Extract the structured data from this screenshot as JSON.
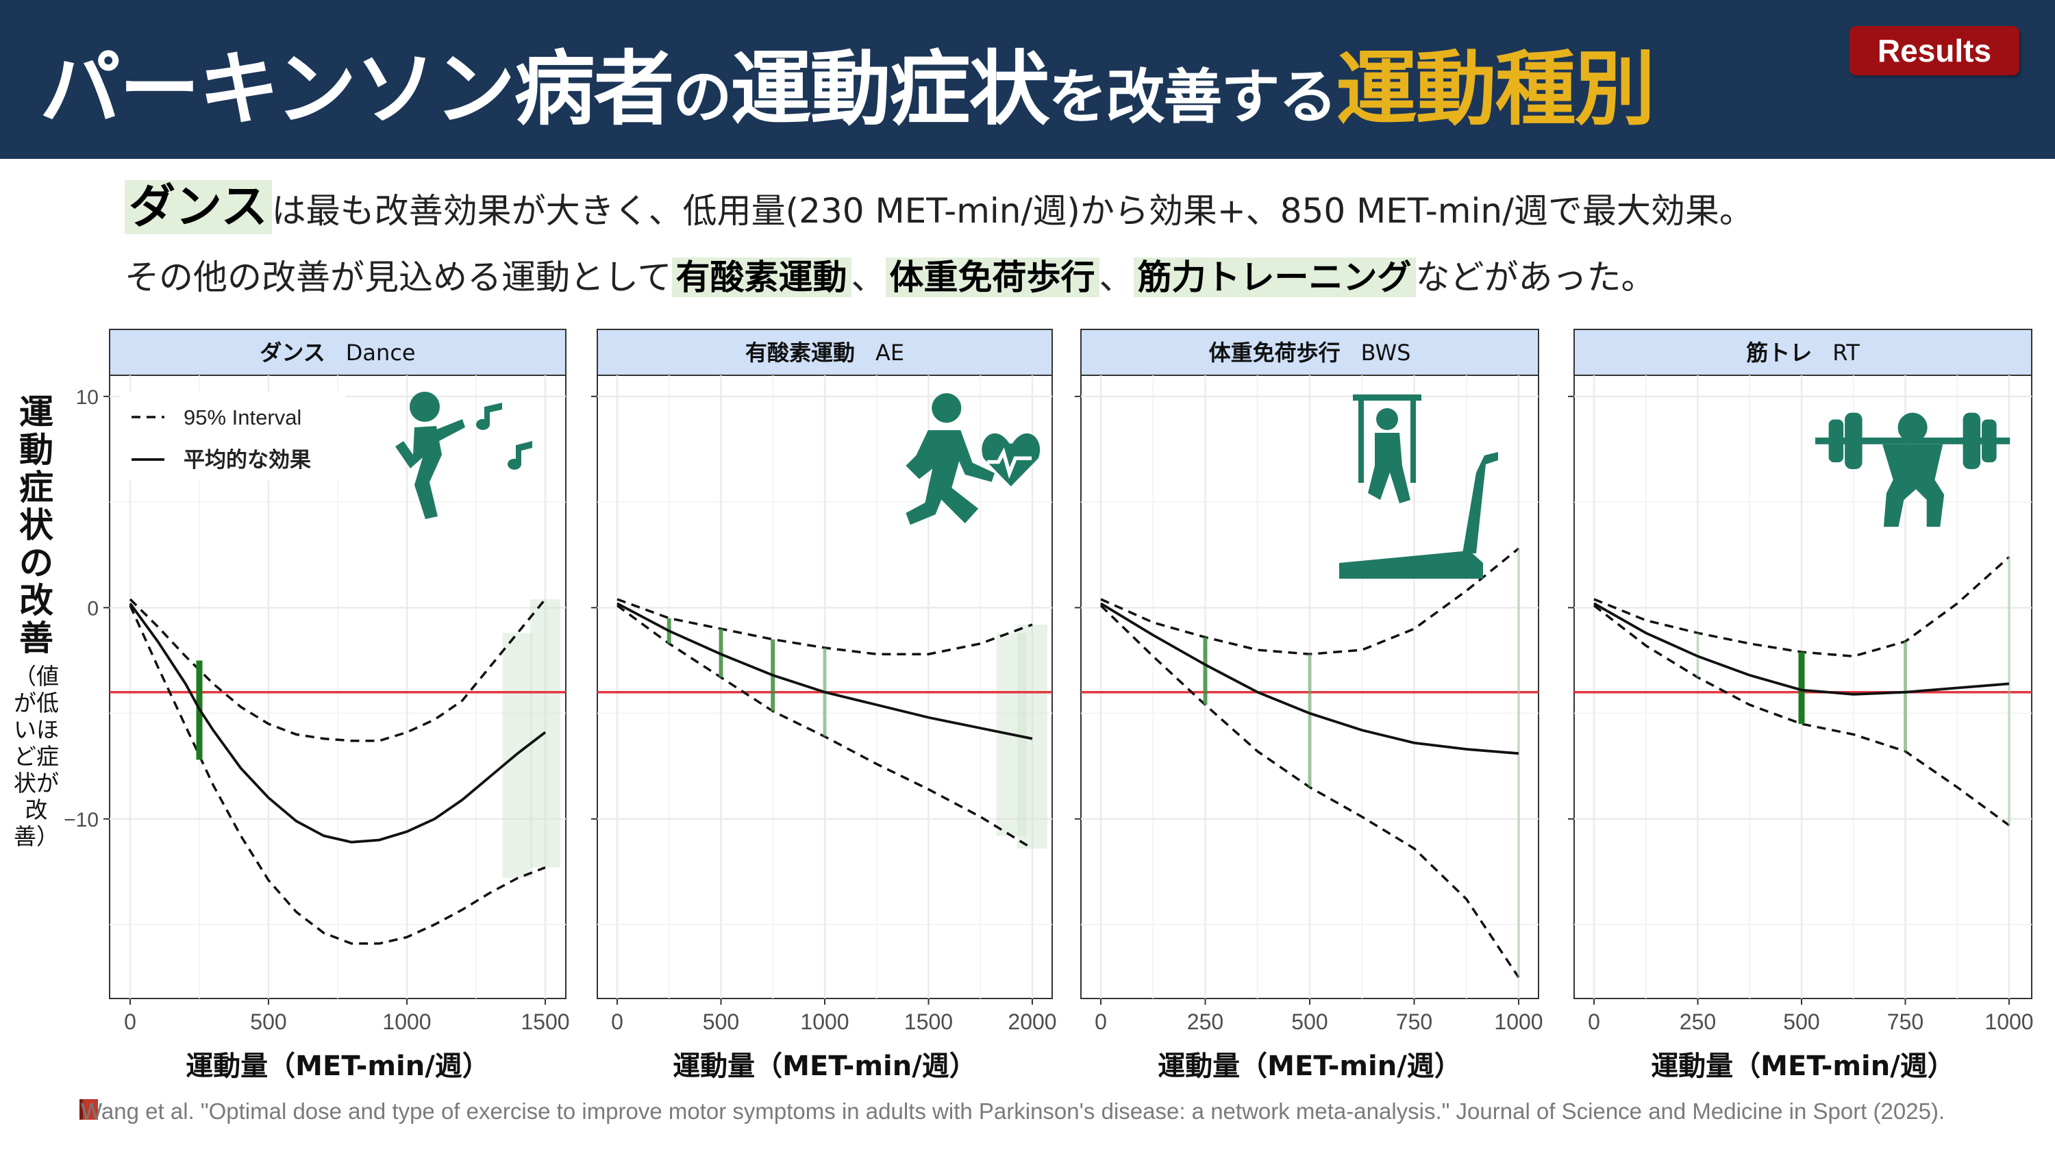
{
  "header": {
    "title_parts": [
      "パーキンソン病者",
      "の",
      "運動症状",
      "を改善する",
      "運動種別"
    ],
    "badge": "Results",
    "colors": {
      "background": "#1b3657",
      "accent": "#e8b21d",
      "badge": "#9e0f13"
    }
  },
  "summary": {
    "line1": {
      "highlight": "ダンス",
      "rest": "は最も改善効果が大きく、低用量(230 MET-min/週)から効果+、850 MET-min/週で最大効果。"
    },
    "line2": {
      "pre": "その他の改善が見込める運動として",
      "h1": "有酸素運動",
      "sep1": "、",
      "h2": "体重免荷歩行",
      "sep2": "、",
      "h3": "筋力トレーニング",
      "post": "などがあった。"
    }
  },
  "y_axis_label": {
    "main": "運動症状の改善",
    "sub": "（値が低いほど症状が改善）"
  },
  "legend": {
    "interval": "95% Interval",
    "mean": "平均的な効果"
  },
  "icons": [
    "dance-icon",
    "running-heart-icon",
    "body-weight-support-treadmill-icon",
    "barbell-squat-icon"
  ],
  "citation": "Wang et al. \"Optimal dose and type of exercise to improve motor symptoms in adults with Parkinson's disease: a network meta-analysis.\" Journal of Science and Medicine in Sport (2025).",
  "chart_data": [
    {
      "type": "line",
      "strip_label": "ダンス",
      "strip_abbr": "Dance",
      "xlabel": "運動量（MET-min/週）",
      "xlim": [
        0,
        1500
      ],
      "xticks": [
        0,
        500,
        1000,
        1500
      ],
      "ylim": [
        -18.5,
        11
      ],
      "yticks": [
        10,
        0,
        -10
      ],
      "reference_line": -4,
      "mean": [
        [
          0,
          0.2
        ],
        [
          100,
          -1.6
        ],
        [
          200,
          -3.6
        ],
        [
          250,
          -4.8
        ],
        [
          300,
          -5.8
        ],
        [
          400,
          -7.6
        ],
        [
          500,
          -9.0
        ],
        [
          600,
          -10.1
        ],
        [
          700,
          -10.8
        ],
        [
          800,
          -11.1
        ],
        [
          900,
          -11.0
        ],
        [
          1000,
          -10.6
        ],
        [
          1100,
          -10.0
        ],
        [
          1200,
          -9.1
        ],
        [
          1300,
          -8.0
        ],
        [
          1400,
          -6.9
        ],
        [
          1500,
          -5.9
        ]
      ],
      "upper": [
        [
          0,
          0.4
        ],
        [
          100,
          -0.9
        ],
        [
          200,
          -2.3
        ],
        [
          300,
          -3.6
        ],
        [
          400,
          -4.7
        ],
        [
          500,
          -5.5
        ],
        [
          600,
          -6.0
        ],
        [
          700,
          -6.2
        ],
        [
          800,
          -6.3
        ],
        [
          900,
          -6.3
        ],
        [
          1000,
          -5.9
        ],
        [
          1100,
          -5.3
        ],
        [
          1200,
          -4.4
        ],
        [
          1300,
          -2.8
        ],
        [
          1400,
          -1.2
        ],
        [
          1500,
          0.4
        ]
      ],
      "lower": [
        [
          0,
          0.1
        ],
        [
          100,
          -2.8
        ],
        [
          200,
          -5.6
        ],
        [
          300,
          -8.4
        ],
        [
          400,
          -10.8
        ],
        [
          500,
          -12.9
        ],
        [
          600,
          -14.4
        ],
        [
          700,
          -15.4
        ],
        [
          800,
          -15.9
        ],
        [
          900,
          -15.9
        ],
        [
          1000,
          -15.6
        ],
        [
          1100,
          -15.0
        ],
        [
          1200,
          -14.3
        ],
        [
          1300,
          -13.5
        ],
        [
          1400,
          -12.8
        ],
        [
          1500,
          -12.3
        ]
      ],
      "markers": [
        {
          "x": 250,
          "lo": -7.2,
          "hi": -2.5,
          "strength": "strong"
        },
        {
          "x": 1400,
          "lo": -12.8,
          "hi": -1.2,
          "strength": "band"
        },
        {
          "x": 1500,
          "lo": -12.3,
          "hi": 0.4,
          "strength": "band"
        }
      ]
    },
    {
      "type": "line",
      "strip_label": "有酸素運動",
      "strip_abbr": "AE",
      "xlabel": "運動量（MET-min/週）",
      "xlim": [
        0,
        2000
      ],
      "xticks": [
        0,
        500,
        1000,
        1500,
        2000
      ],
      "ylim": [
        -18.5,
        11
      ],
      "yticks": [
        10,
        0,
        -10
      ],
      "reference_line": -4,
      "mean": [
        [
          0,
          0.2
        ],
        [
          250,
          -1.1
        ],
        [
          500,
          -2.2
        ],
        [
          750,
          -3.2
        ],
        [
          1000,
          -4.0
        ],
        [
          1250,
          -4.6
        ],
        [
          1500,
          -5.2
        ],
        [
          1750,
          -5.7
        ],
        [
          2000,
          -6.2
        ]
      ],
      "upper": [
        [
          0,
          0.4
        ],
        [
          250,
          -0.5
        ],
        [
          500,
          -1.0
        ],
        [
          750,
          -1.5
        ],
        [
          1000,
          -1.9
        ],
        [
          1250,
          -2.2
        ],
        [
          1500,
          -2.2
        ],
        [
          1750,
          -1.7
        ],
        [
          2000,
          -0.8
        ]
      ],
      "lower": [
        [
          0,
          0.1
        ],
        [
          250,
          -1.7
        ],
        [
          500,
          -3.3
        ],
        [
          750,
          -4.9
        ],
        [
          1000,
          -6.1
        ],
        [
          1250,
          -7.4
        ],
        [
          1500,
          -8.6
        ],
        [
          1750,
          -9.9
        ],
        [
          2000,
          -11.4
        ]
      ],
      "markers": [
        {
          "x": 250,
          "lo": -1.7,
          "hi": -0.5,
          "strength": "medium"
        },
        {
          "x": 500,
          "lo": -3.3,
          "hi": -1.0,
          "strength": "medium"
        },
        {
          "x": 750,
          "lo": -4.9,
          "hi": -1.5,
          "strength": "medium"
        },
        {
          "x": 1000,
          "lo": -6.1,
          "hi": -1.9,
          "strength": "weak"
        },
        {
          "x": 1900,
          "lo": -10.8,
          "hi": -1.2,
          "strength": "band"
        },
        {
          "x": 2000,
          "lo": -11.4,
          "hi": -0.8,
          "strength": "band"
        }
      ]
    },
    {
      "type": "line",
      "strip_label": "体重免荷歩行",
      "strip_abbr": "BWS",
      "xlabel": "運動量（MET-min/週）",
      "xlim": [
        0,
        1000
      ],
      "xticks": [
        0,
        250,
        500,
        750,
        1000
      ],
      "ylim": [
        -18.5,
        11
      ],
      "yticks": [
        10,
        0,
        -10
      ],
      "reference_line": -4,
      "mean": [
        [
          0,
          0.2
        ],
        [
          125,
          -1.3
        ],
        [
          250,
          -2.7
        ],
        [
          375,
          -4.0
        ],
        [
          500,
          -5.0
        ],
        [
          625,
          -5.8
        ],
        [
          750,
          -6.4
        ],
        [
          875,
          -6.7
        ],
        [
          1000,
          -6.9
        ]
      ],
      "upper": [
        [
          0,
          0.4
        ],
        [
          125,
          -0.7
        ],
        [
          250,
          -1.4
        ],
        [
          375,
          -2.0
        ],
        [
          500,
          -2.2
        ],
        [
          625,
          -2.0
        ],
        [
          750,
          -1.0
        ],
        [
          875,
          0.8
        ],
        [
          1000,
          2.8
        ]
      ],
      "lower": [
        [
          0,
          0.1
        ],
        [
          125,
          -2.3
        ],
        [
          250,
          -4.6
        ],
        [
          375,
          -6.8
        ],
        [
          500,
          -8.5
        ],
        [
          625,
          -9.9
        ],
        [
          750,
          -11.4
        ],
        [
          875,
          -13.8
        ],
        [
          1000,
          -17.5
        ]
      ],
      "markers": [
        {
          "x": 250,
          "lo": -4.6,
          "hi": -1.4,
          "strength": "medium"
        },
        {
          "x": 500,
          "lo": -8.5,
          "hi": -2.2,
          "strength": "weak"
        },
        {
          "x": 1000,
          "lo": -17.5,
          "hi": 2.8,
          "strength": "faint"
        }
      ]
    },
    {
      "type": "line",
      "strip_label": "筋トレ",
      "strip_abbr": "RT",
      "xlabel": "運動量（MET-min/週）",
      "xlim": [
        0,
        1000
      ],
      "xticks": [
        0,
        250,
        500,
        750,
        1000
      ],
      "ylim": [
        -18.5,
        11
      ],
      "yticks": [
        10,
        0,
        -10
      ],
      "reference_line": -4,
      "mean": [
        [
          0,
          0.2
        ],
        [
          125,
          -1.2
        ],
        [
          250,
          -2.3
        ],
        [
          375,
          -3.2
        ],
        [
          500,
          -3.9
        ],
        [
          625,
          -4.1
        ],
        [
          750,
          -4.0
        ],
        [
          875,
          -3.8
        ],
        [
          1000,
          -3.6
        ]
      ],
      "upper": [
        [
          0,
          0.4
        ],
        [
          125,
          -0.6
        ],
        [
          250,
          -1.2
        ],
        [
          375,
          -1.7
        ],
        [
          500,
          -2.1
        ],
        [
          625,
          -2.3
        ],
        [
          750,
          -1.6
        ],
        [
          875,
          0.2
        ],
        [
          1000,
          2.4
        ]
      ],
      "lower": [
        [
          0,
          0.1
        ],
        [
          125,
          -1.8
        ],
        [
          250,
          -3.3
        ],
        [
          375,
          -4.6
        ],
        [
          500,
          -5.5
        ],
        [
          625,
          -6.0
        ],
        [
          750,
          -6.8
        ],
        [
          875,
          -8.5
        ],
        [
          1000,
          -10.3
        ]
      ],
      "markers": [
        {
          "x": 250,
          "lo": -3.3,
          "hi": -1.2,
          "strength": "faint"
        },
        {
          "x": 500,
          "lo": -5.5,
          "hi": -2.1,
          "strength": "strong"
        },
        {
          "x": 750,
          "lo": -6.8,
          "hi": -1.6,
          "strength": "weak"
        },
        {
          "x": 1000,
          "lo": -10.3,
          "hi": 2.4,
          "strength": "faint"
        }
      ]
    }
  ]
}
